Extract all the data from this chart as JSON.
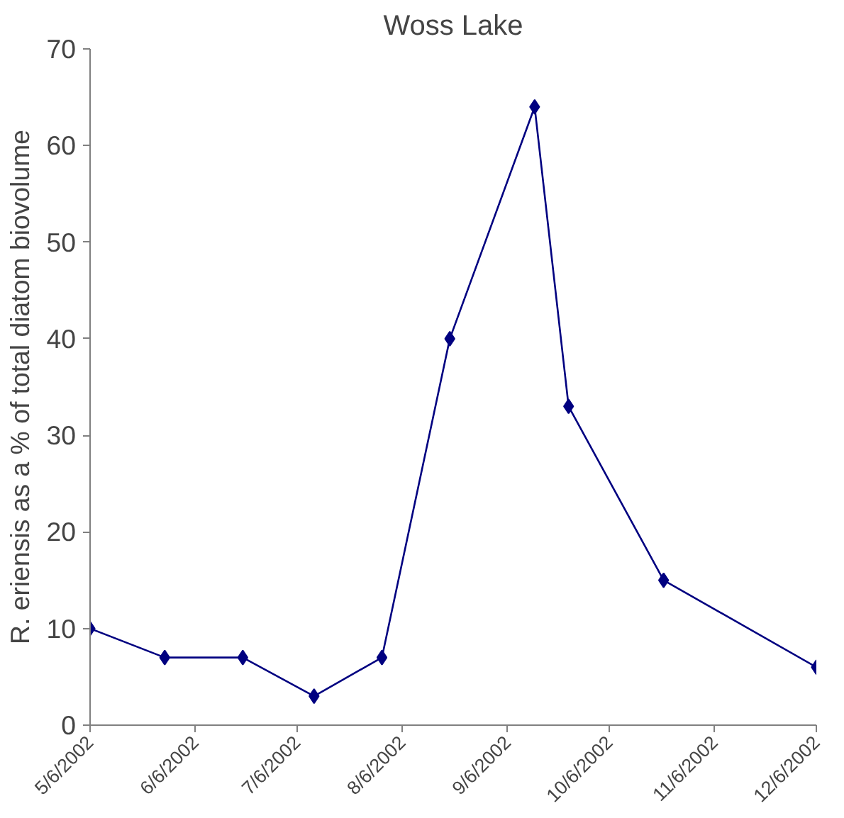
{
  "chart_data": {
    "type": "line",
    "title": "Woss Lake",
    "ylabel": "R. eriensis as a % of total diatom biovolume",
    "x": [
      "2002-05-06",
      "2002-05-28",
      "2002-06-20",
      "2002-07-11",
      "2002-07-31",
      "2002-08-20",
      "2002-09-14",
      "2002-09-24",
      "2002-10-22",
      "2002-12-06"
    ],
    "series": [
      {
        "color": "#000080",
        "values": [
          10,
          7,
          7,
          3,
          7,
          40,
          64,
          33,
          15,
          6
        ]
      }
    ],
    "xlim": [
      "2002-05-06",
      "2002-12-06"
    ],
    "xticks": [
      {
        "value": "2002-05-06",
        "label": "5/6/2002"
      },
      {
        "value": "2002-06-06",
        "label": "6/6/2002"
      },
      {
        "value": "2002-07-06",
        "label": "7/6/2002"
      },
      {
        "value": "2002-08-06",
        "label": "8/6/2002"
      },
      {
        "value": "2002-09-06",
        "label": "9/6/2002"
      },
      {
        "value": "2002-10-06",
        "label": "10/6/2002"
      },
      {
        "value": "2002-11-06",
        "label": "11/6/2002"
      },
      {
        "value": "2002-12-06",
        "label": "12/6/2002"
      }
    ],
    "ylim": [
      0,
      70
    ],
    "yticks": [
      0,
      10,
      20,
      30,
      40,
      50,
      60,
      70
    ],
    "grid": false,
    "marker": "diamond",
    "line_style": "solid"
  }
}
